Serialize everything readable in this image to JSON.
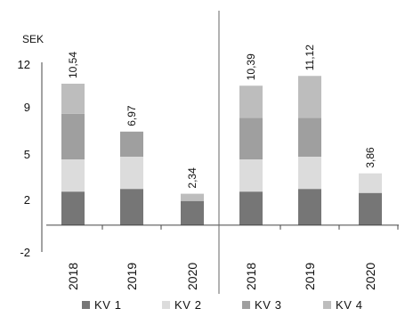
{
  "chart_data": {
    "type": "bar",
    "stacked": true,
    "unit_label": "SEK",
    "groups": [
      {
        "categories": [
          "2018",
          "2019",
          "2020"
        ]
      },
      {
        "categories": [
          "2018",
          "2019",
          "2020"
        ]
      }
    ],
    "series": [
      {
        "name": "KV 1",
        "color": "#767676",
        "values": [
          [
            2.5,
            2.7,
            1.8
          ],
          [
            2.5,
            2.7,
            2.4
          ]
        ]
      },
      {
        "name": "KV 2",
        "color": "#dcdcdc",
        "values": [
          [
            2.4,
            2.4,
            0.0
          ],
          [
            2.4,
            2.4,
            1.46
          ]
        ]
      },
      {
        "name": "KV 3",
        "color": "#9f9f9f",
        "values": [
          [
            3.4,
            1.87,
            0.0
          ],
          [
            3.1,
            2.9,
            0.0
          ]
        ]
      },
      {
        "name": "KV 4",
        "color": "#bdbdbd",
        "values": [
          [
            2.24,
            0.0,
            0.54
          ],
          [
            2.39,
            3.12,
            0.0
          ]
        ]
      }
    ],
    "totals": [
      [
        "10,54",
        "6,97",
        "2,34"
      ],
      [
        "10,39",
        "11,12",
        "3,86"
      ]
    ],
    "y_ticks": [
      "12",
      "9",
      "5",
      "2",
      "-2"
    ],
    "y_tick_values": [
      12,
      8.8,
      5.3,
      1.9,
      -2
    ],
    "ylim": [
      -2,
      12
    ],
    "grid": false,
    "legend_position": "bottom"
  }
}
